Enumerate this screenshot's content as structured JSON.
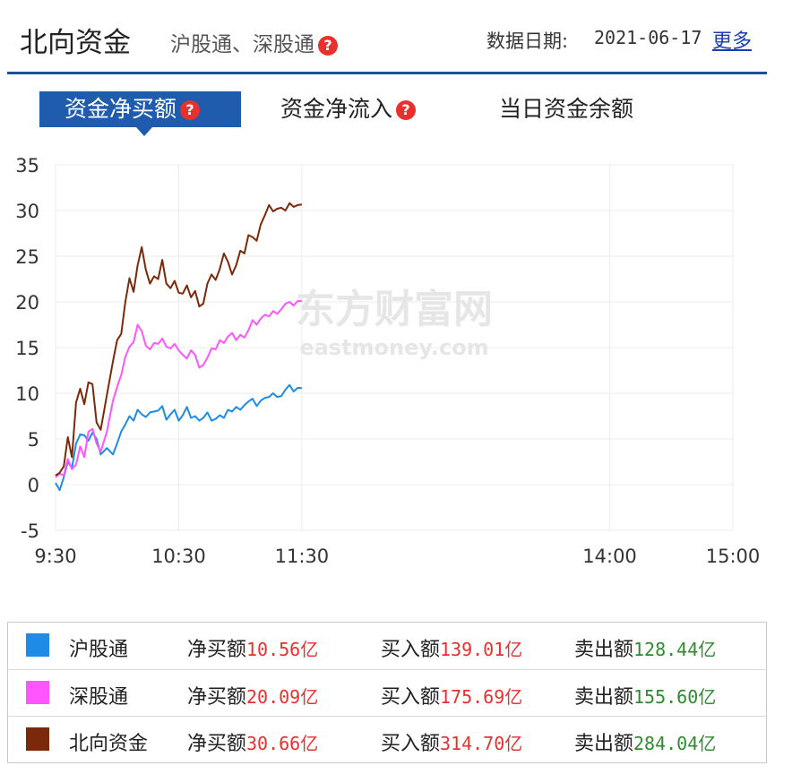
{
  "header": {
    "title": "北向资金",
    "subtitle": "沪股通、深股通",
    "date_label": "数据日期:",
    "date_value": "2021-06-17",
    "more_label": "更多"
  },
  "tabs": [
    {
      "label": "资金净买额",
      "active": true,
      "help": true
    },
    {
      "label": "资金净流入",
      "active": false,
      "help": true
    },
    {
      "label": "当日资金余额",
      "active": false,
      "help": false
    }
  ],
  "watermark": {
    "cn": "东方财富网",
    "en": "eastmoney.com"
  },
  "chart_data": {
    "type": "line",
    "x_ticks": [
      "9:30",
      "10:30",
      "11:30",
      "14:00",
      "15:00"
    ],
    "y_ticks": [
      "35",
      "30",
      "25",
      "20",
      "15",
      "10",
      "5",
      "0",
      "-5"
    ],
    "ylim": [
      -5,
      35
    ],
    "grid": true,
    "series": [
      {
        "name": "沪股通",
        "color": "#1e8ce6",
        "x": [
          0,
          2,
          4,
          6,
          8,
          10,
          12,
          14,
          16,
          18,
          20,
          22,
          25,
          28,
          30,
          32,
          34,
          36,
          38,
          40,
          42,
          44,
          46,
          48,
          50,
          52,
          54,
          56,
          58,
          60,
          62,
          64,
          66,
          68,
          70,
          72,
          74,
          76,
          78,
          80,
          82,
          84,
          86,
          88,
          90,
          92,
          94,
          96,
          98,
          100,
          102,
          104,
          106,
          108,
          110,
          112,
          114,
          116,
          118,
          120
        ],
        "y": [
          0.2,
          -0.6,
          0.8,
          2.5,
          1.8,
          4.5,
          5.5,
          5.4,
          4.8,
          5.7,
          5.0,
          3.3,
          4.0,
          3.3,
          4.5,
          5.8,
          6.6,
          7.5,
          7.0,
          8.2,
          7.7,
          7.4,
          7.9,
          8.0,
          8.1,
          8.6,
          7.1,
          7.7,
          8.2,
          7.0,
          7.6,
          8.5,
          7.3,
          7.5,
          7.0,
          7.3,
          7.9,
          7.0,
          7.2,
          7.6,
          7.3,
          8.2,
          8.0,
          8.5,
          8.2,
          8.7,
          9.1,
          9.4,
          8.6,
          9.2,
          9.5,
          9.6,
          10.0,
          9.6,
          9.7,
          10.4,
          10.9,
          10.2,
          10.6,
          10.56
        ]
      },
      {
        "name": "深股通",
        "color": "#ff55ff",
        "x": [
          0,
          2,
          4,
          6,
          8,
          10,
          12,
          14,
          16,
          18,
          20,
          22,
          25,
          28,
          30,
          32,
          34,
          36,
          38,
          40,
          42,
          44,
          46,
          48,
          50,
          52,
          54,
          56,
          58,
          60,
          62,
          64,
          66,
          68,
          70,
          72,
          74,
          76,
          78,
          80,
          82,
          84,
          86,
          88,
          90,
          92,
          94,
          96,
          98,
          100,
          102,
          104,
          106,
          108,
          110,
          112,
          114,
          116,
          118,
          120
        ],
        "y": [
          0.8,
          1.2,
          1.0,
          2.8,
          1.7,
          2.2,
          4.2,
          3.0,
          5.8,
          6.1,
          4.5,
          3.6,
          5.8,
          9.2,
          10.7,
          12.0,
          14.0,
          15.1,
          15.6,
          17.5,
          16.8,
          15.2,
          14.8,
          15.5,
          15.4,
          16.0,
          15.1,
          14.9,
          15.4,
          14.7,
          14.2,
          13.8,
          14.7,
          14.2,
          12.8,
          13.1,
          13.9,
          14.9,
          14.8,
          15.8,
          15.5,
          16.2,
          16.6,
          15.8,
          16.4,
          16.1,
          16.9,
          18.0,
          17.5,
          18.2,
          18.6,
          18.4,
          19.0,
          18.7,
          19.2,
          19.8,
          20.0,
          19.6,
          20.1,
          20.09
        ]
      },
      {
        "name": "北向资金",
        "color": "#7a2a0a",
        "x": [
          0,
          2,
          4,
          6,
          8,
          10,
          12,
          14,
          16,
          18,
          20,
          22,
          25,
          28,
          30,
          32,
          34,
          36,
          38,
          40,
          42,
          44,
          46,
          48,
          50,
          52,
          54,
          56,
          58,
          60,
          62,
          64,
          66,
          68,
          70,
          72,
          74,
          76,
          78,
          80,
          82,
          84,
          86,
          88,
          90,
          92,
          94,
          96,
          98,
          100,
          102,
          104,
          106,
          108,
          110,
          112,
          114,
          116,
          118,
          120
        ],
        "y": [
          1.0,
          1.3,
          2.0,
          5.2,
          3.0,
          9.0,
          10.5,
          8.8,
          11.2,
          11.0,
          6.8,
          6.0,
          9.8,
          13.5,
          15.8,
          16.5,
          20.0,
          22.6,
          21.1,
          24.0,
          26.0,
          23.5,
          22.0,
          22.8,
          22.5,
          24.6,
          22.0,
          21.5,
          22.3,
          21.0,
          20.9,
          21.8,
          20.5,
          21.2,
          19.5,
          19.8,
          22.0,
          23.0,
          22.4,
          23.6,
          25.3,
          24.4,
          23.0,
          24.0,
          25.6,
          25.3,
          27.3,
          27.1,
          26.7,
          28.5,
          29.5,
          30.6,
          29.9,
          30.2,
          30.3,
          30.0,
          30.8,
          30.4,
          30.6,
          30.66
        ]
      }
    ]
  },
  "legend": [
    {
      "name": "沪股通",
      "color": "#1e8ce6",
      "net_label": "净买额",
      "net": "10.56亿",
      "buy_label": "买入额",
      "buy": "139.01亿",
      "sell_label": "卖出额",
      "sell": "128.44亿"
    },
    {
      "name": "深股通",
      "color": "#ff55ff",
      "net_label": "净买额",
      "net": "20.09亿",
      "buy_label": "买入额",
      "buy": "175.69亿",
      "sell_label": "卖出额",
      "sell": "155.60亿"
    },
    {
      "name": "北向资金",
      "color": "#7a2a0a",
      "net_label": "净买额",
      "net": "30.66亿",
      "buy_label": "买入额",
      "buy": "314.70亿",
      "sell_label": "卖出额",
      "sell": "284.04亿"
    }
  ]
}
